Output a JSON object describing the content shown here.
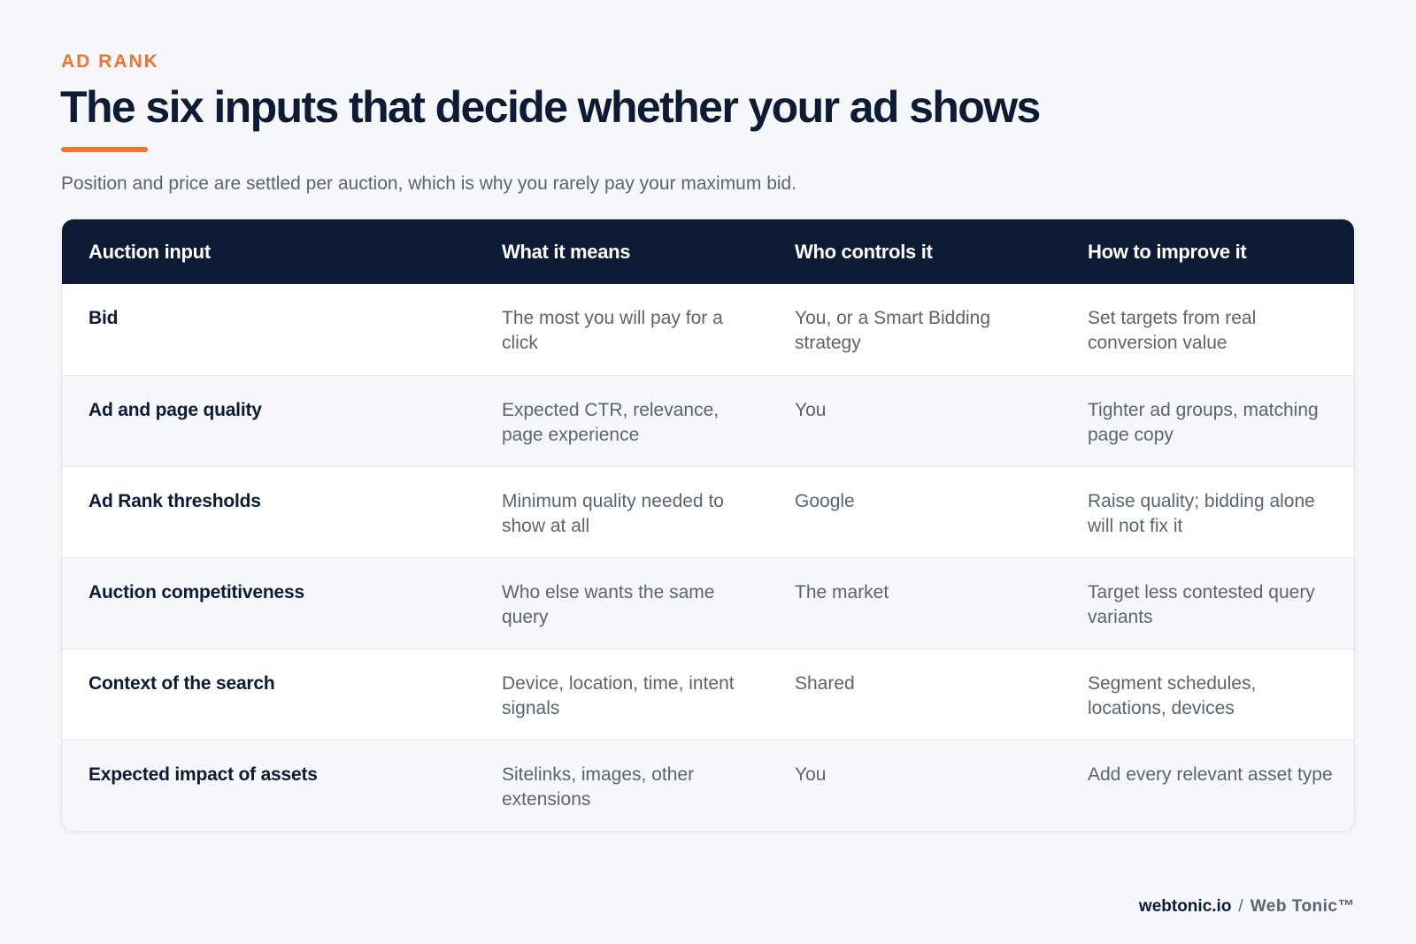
{
  "header": {
    "eyebrow": "AD RANK",
    "title": "The six inputs that decide whether your ad shows",
    "subtitle": "Position and price are settled per auction, which is why you rarely pay your maximum bid."
  },
  "table": {
    "columns": [
      "Auction input",
      "What it means",
      "Who controls it",
      "How to improve it"
    ],
    "rows": [
      {
        "input": "Bid",
        "meaning": "The most you will pay for a click",
        "control": "You, or a Smart Bidding strategy",
        "improve": "Set targets from real conversion value"
      },
      {
        "input": "Ad and page quality",
        "meaning": "Expected CTR, relevance, page experience",
        "control": "You",
        "improve": "Tighter ad groups, matching page copy"
      },
      {
        "input": "Ad Rank thresholds",
        "meaning": "Minimum quality needed to show at all",
        "control": "Google",
        "improve": "Raise quality; bidding alone will not fix it"
      },
      {
        "input": "Auction competitiveness",
        "meaning": "Who else wants the same query",
        "control": "The market",
        "improve": "Target less contested query variants"
      },
      {
        "input": "Context of the search",
        "meaning": "Device, location, time, intent signals",
        "control": "Shared",
        "improve": "Segment schedules, locations, devices"
      },
      {
        "input": "Expected impact of assets",
        "meaning": "Sitelinks, images, other extensions",
        "control": "You",
        "improve": "Add every relevant asset type"
      }
    ]
  },
  "footer": {
    "domain": "webtonic.io",
    "separator": "/",
    "brand": "Web Tonic™"
  },
  "colors": {
    "accent": "#ec7434",
    "navy": "#0e1b34",
    "muted_text": "#5b6472",
    "background": "#f5f7fa"
  }
}
